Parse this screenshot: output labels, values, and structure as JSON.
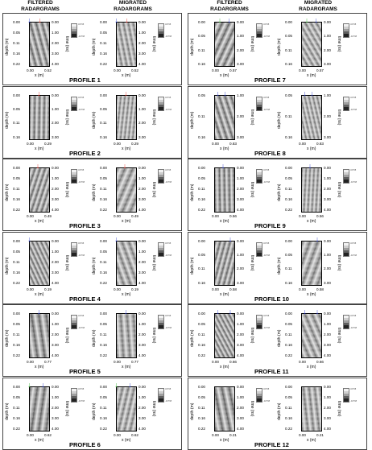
{
  "headers": {
    "left_filtered": [
      "FILTERED",
      "RADARGRAMS"
    ],
    "left_migrated": [
      "MIGRATED",
      "RADARGRAMS"
    ],
    "right_filtered": [
      "FILTERED",
      "RADARGRAMS"
    ],
    "right_migrated": [
      "MIGRATED",
      "RADARGRAMS"
    ]
  },
  "axis": {
    "depth_label": "depth (m)",
    "time_label": "time (ns)",
    "x_label": "x (m)",
    "colorbar_ticks": [
      "32768",
      "",
      "",
      "-32768"
    ]
  },
  "colors": {
    "red": "#e0251b",
    "blue": "#1d2fc4",
    "green": "#2fae2c"
  },
  "profiles": [
    {
      "label": "PROFILE 1",
      "depth_ticks": [
        "0.00",
        "0.05",
        "0.11",
        "0.16",
        "0.22"
      ],
      "time_ticks": [
        "0.00",
        "1.00",
        "2.00",
        "3.00",
        "4.00"
      ],
      "x_ticks": [
        "0.00",
        "0.52"
      ],
      "arrows": [
        [
          "red",
          0.55
        ],
        [
          "blue",
          0.05
        ]
      ]
    },
    {
      "label": "PROFILE 2",
      "depth_ticks": [
        "0.00",
        "0.05",
        "0.11",
        "0.16"
      ],
      "time_ticks": [
        "0.00",
        "1.00",
        "2.00",
        "3.00"
      ],
      "x_ticks": [
        "0.00",
        "0.29"
      ],
      "arrows": [
        [
          "red",
          0.5
        ]
      ]
    },
    {
      "label": "PROFILE 3",
      "depth_ticks": [
        "0.00",
        "0.05",
        "0.11",
        "0.16",
        "0.22"
      ],
      "time_ticks": [
        "0.00",
        "1.00",
        "2.00",
        "3.00",
        "4.00"
      ],
      "x_ticks": [
        "0.00",
        "0.49"
      ],
      "arrows": [
        [
          "red",
          0.45
        ]
      ]
    },
    {
      "label": "PROFILE 4",
      "depth_ticks": [
        "0.00",
        "0.05",
        "0.11",
        "0.16",
        "0.22"
      ],
      "time_ticks": [
        "0.00",
        "1.00",
        "2.00",
        "3.00",
        "4.00"
      ],
      "x_ticks": [
        "0.00",
        "0.19"
      ],
      "arrows": [
        [
          "blue",
          0.05
        ]
      ]
    },
    {
      "label": "PROFILE 5",
      "depth_ticks": [
        "0.00",
        "0.05",
        "0.11",
        "0.16",
        "0.22"
      ],
      "time_ticks": [
        "0.00",
        "1.00",
        "2.00",
        "3.00",
        "4.00"
      ],
      "x_ticks": [
        "0.00",
        "0.77"
      ],
      "arrows": [
        [
          "blue",
          0.5
        ]
      ]
    },
    {
      "label": "PROFILE 6",
      "depth_ticks": [
        "0.00",
        "0.05",
        "0.11",
        "0.16",
        "0.22"
      ],
      "time_ticks": [
        "0.00",
        "1.00",
        "2.00",
        "3.00",
        "4.00"
      ],
      "x_ticks": [
        "0.00",
        "0.62"
      ],
      "arrows": [
        [
          "green",
          0.05
        ],
        [
          "blue",
          0.7
        ]
      ]
    },
    {
      "label": "PROFILE 7",
      "depth_ticks": [
        "0.00",
        "0.05",
        "0.11",
        "0.16"
      ],
      "time_ticks": [
        "0.00",
        "1.00",
        "2.00",
        "3.00"
      ],
      "x_ticks": [
        "0.00",
        "0.57"
      ],
      "arrows": [
        [
          "green",
          0.3
        ],
        [
          "blue",
          0.75
        ]
      ]
    },
    {
      "label": "PROFILE 8",
      "depth_ticks": [
        "0.05",
        "0.11",
        "0.16"
      ],
      "time_ticks": [
        "1.00",
        "2.00",
        "3.00"
      ],
      "x_ticks": [
        "0.00",
        "0.83"
      ],
      "arrows": [
        [
          "blue",
          0.2
        ],
        [
          "blue",
          0.55
        ]
      ]
    },
    {
      "label": "PROFILE 9",
      "depth_ticks": [
        "0.00",
        "0.05",
        "0.11",
        "0.16",
        "0.22"
      ],
      "time_ticks": [
        "0.00",
        "1.00",
        "2.00",
        "3.00",
        "4.00"
      ],
      "x_ticks": [
        "0.00",
        "0.56"
      ],
      "arrows": [
        [
          "blue",
          0.45
        ]
      ]
    },
    {
      "label": "PROFILE 10",
      "depth_ticks": [
        "0.00",
        "0.05",
        "0.11",
        "0.16"
      ],
      "time_ticks": [
        "0.00",
        "1.00",
        "2.00",
        "3.00"
      ],
      "x_ticks": [
        "0.00",
        "0.58"
      ],
      "arrows": [
        [
          "blue",
          0.8
        ]
      ]
    },
    {
      "label": "PROFILE 11",
      "depth_ticks": [
        "0.00",
        "0.05",
        "0.11",
        "0.16",
        "0.22"
      ],
      "time_ticks": [
        "0.00",
        "1.00",
        "2.00",
        "3.00",
        "4.00"
      ],
      "x_ticks": [
        "0.00",
        "0.66"
      ],
      "arrows": [
        [
          "blue",
          0.2
        ],
        [
          "blue",
          0.8
        ]
      ]
    },
    {
      "label": "PROFILE 12",
      "depth_ticks": [
        "0.00",
        "0.05",
        "0.11",
        "0.16",
        "0.22"
      ],
      "time_ticks": [
        "0.00",
        "1.00",
        "2.00",
        "3.00",
        "4.00"
      ],
      "x_ticks": [
        "0.00",
        "0.21"
      ],
      "arrows": []
    }
  ]
}
